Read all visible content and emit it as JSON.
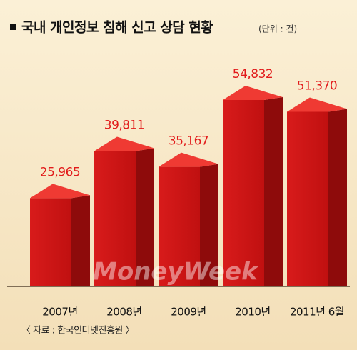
{
  "chart_data": {
    "type": "bar3d",
    "title": "국내 개인정보 침해 신고 상담 현황",
    "unit": "(단위 : 건)",
    "categories": [
      "2007년",
      "2008년",
      "2009년",
      "2010년",
      "2011년 6월"
    ],
    "values": [
      25965,
      39811,
      35167,
      54832,
      51370
    ],
    "value_labels": [
      "25,965",
      "39,811",
      "35,167",
      "54,832",
      "51,370"
    ],
    "color": "#d81b1b",
    "watermark": "MoneyWeek",
    "source": "〈 자료 : 한국인터넷진흥원 〉"
  }
}
